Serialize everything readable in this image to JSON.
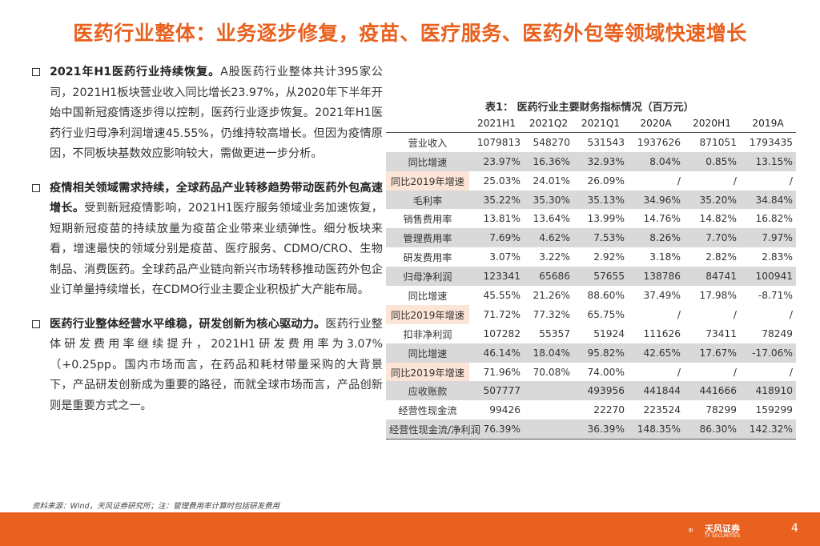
{
  "title": "医药行业整体：业务逐步修复，疫苗、医疗服务、医药外包等领域快速增长",
  "bullets": [
    {
      "bold": "2021年H1医药行业持续恢复。",
      "text": "A股医药行业整体共计395家公司，2021H1板块营业收入同比增长23.97%，从2020年下半年开始中国新冠疫情逐步得以控制，医药行业逐步恢复。2021年H1医药行业归母净利润增速45.55%，仍维持较高增长。但因为疫情原因，不同板块基数效应影响较大，需做更进一步分析。"
    },
    {
      "bold": "疫情相关领域需求持续，全球药品产业转移趋势带动医药外包高速增长。",
      "text": "受到新冠疫情影响，2021H1医疗服务领域业务加速恢复，短期新冠疫苗的持续放量为疫苗企业带来业绩弹性。细分板块来看，增速最快的领域分别是疫苗、医疗服务、CDMO/CRO、生物制品、消费医药。全球药品产业链向新兴市场转移推动医药外包企业订单量持续增长，在CDMO行业主要企业积极扩大产能布局。"
    },
    {
      "bold": "医药行业整体经营水平维稳，研发创新为核心驱动力。",
      "text": "医药行业整体研发费用率继续提升，2021H1研发费用率为3.07%（+0.25pp。国内市场而言，在药品和耗材带量采购的大背景下，产品研发创新成为重要的路径，而就全球市场而言，产品创新则是重要方式之一。"
    }
  ],
  "table": {
    "caption": "表1：   医药行业主要财务指标情况（百万元）",
    "headers": [
      "",
      "2021H1",
      "2021Q2",
      "2021Q1",
      "2020A",
      "2020H1",
      "2019A"
    ],
    "rows": [
      {
        "label": "营业收入",
        "style": "white",
        "cells": [
          "1079813",
          "548270",
          "531543",
          "1937626",
          "871051",
          "1793435"
        ]
      },
      {
        "label": "同比增速",
        "style": "grey",
        "cells": [
          "23.97%",
          "16.36%",
          "32.93%",
          "8.04%",
          "0.85%",
          "13.15%"
        ]
      },
      {
        "label": "同比2019年增速",
        "style": "peach",
        "cells": [
          "25.03%",
          "24.01%",
          "26.09%",
          "/",
          "/",
          "/"
        ]
      },
      {
        "label": "毛利率",
        "style": "grey",
        "cells": [
          "35.22%",
          "35.30%",
          "35.13%",
          "34.96%",
          "35.20%",
          "34.84%"
        ]
      },
      {
        "label": "销售费用率",
        "style": "white",
        "cells": [
          "13.81%",
          "13.64%",
          "13.99%",
          "14.76%",
          "14.82%",
          "16.82%"
        ]
      },
      {
        "label": "管理费用率",
        "style": "grey",
        "cells": [
          "7.69%",
          "4.62%",
          "7.53%",
          "8.26%",
          "7.70%",
          "7.97%"
        ]
      },
      {
        "label": "研发费用率",
        "style": "white",
        "cells": [
          "3.07%",
          "3.22%",
          "2.92%",
          "3.18%",
          "2.82%",
          "2.83%"
        ]
      },
      {
        "label": "归母净利润",
        "style": "grey",
        "cells": [
          "123341",
          "65686",
          "57655",
          "138786",
          "84741",
          "100941"
        ]
      },
      {
        "label": "同比增速",
        "style": "white",
        "cells": [
          "45.55%",
          "21.26%",
          "88.60%",
          "37.49%",
          "17.98%",
          "-8.71%"
        ]
      },
      {
        "label": "同比2019年增速",
        "style": "grey peach",
        "cells": [
          "71.72%",
          "77.32%",
          "65.75%",
          "/",
          "/",
          "/"
        ]
      },
      {
        "label": "扣非净利润",
        "style": "white",
        "cells": [
          "107282",
          "55357",
          "51924",
          "111626",
          "73411",
          "78249"
        ]
      },
      {
        "label": "同比增速",
        "style": "grey",
        "cells": [
          "46.14%",
          "18.04%",
          "95.82%",
          "42.65%",
          "17.67%",
          "-17.06%"
        ]
      },
      {
        "label": "同比2019年增速",
        "style": "peach",
        "cells": [
          "71.96%",
          "70.08%",
          "74.00%",
          "/",
          "/",
          "/"
        ]
      },
      {
        "label": "应收账款",
        "style": "grey",
        "cells": [
          "507777",
          "",
          "493956",
          "441844",
          "441666",
          "418910"
        ]
      },
      {
        "label": "经营性现金流",
        "style": "white",
        "cells": [
          "99426",
          "",
          "22270",
          "223524",
          "78299",
          "159299"
        ]
      },
      {
        "label": "经营性现金流/净利润",
        "style": "grey last",
        "cells": [
          "76.39%",
          "",
          "36.39%",
          "148.35%",
          "86.30%",
          "142.32%"
        ]
      }
    ]
  },
  "source": "资料来源：Wind，天风证券研究所；注：管理费用率计算时包括研发费用",
  "logo": {
    "name": "天风证券",
    "sub": "TF SECURITIES",
    "icon": "tf-flower-logo-icon"
  },
  "page_number": "4",
  "colors": {
    "accent": "#e8611f",
    "grey_row": "#d9d9d9",
    "peach_cell": "#fce4d6"
  }
}
